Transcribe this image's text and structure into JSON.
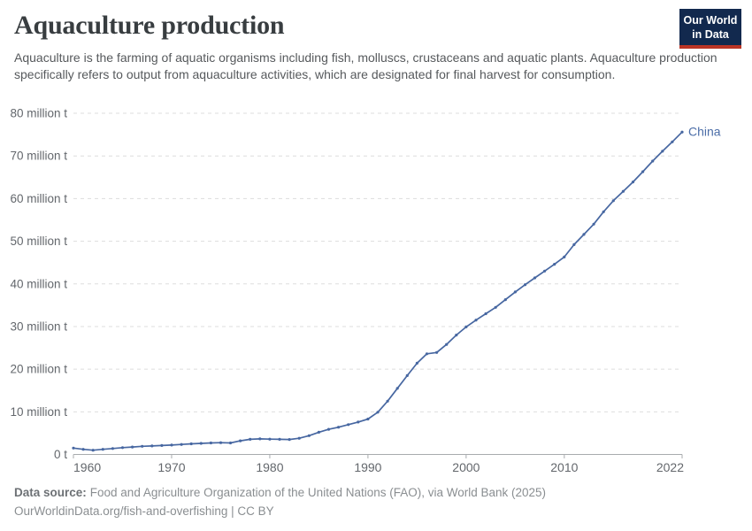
{
  "header": {
    "title": "Aquaculture production",
    "subtitle": "Aquaculture is the farming of aquatic organisms including fish, molluscs, crustaceans and aquatic plants. Aquaculture production specifically refers to output from aquaculture activities, which are designated for final harvest for consumption.",
    "logo": {
      "line1": "Our World",
      "line2": "in Data"
    }
  },
  "footer": {
    "source_label": "Data source:",
    "source_text": "Food and Agriculture Organization of the United Nations (FAO), via World Bank (2025)",
    "note_text": "OurWorldinData.org/fish-and-overfishing | CC BY"
  },
  "colors": {
    "series_blue": "#4767a1",
    "end_label_blue": "#4c6ea8",
    "gridline": "#dddddd",
    "axis": "#a8abae",
    "tick_label": "#63676c",
    "title": "#383d40",
    "subtitle": "#56595c",
    "logo_background": "#12294e",
    "logo_red": "#bb3425"
  },
  "chart_data": {
    "type": "line",
    "title": "Aquaculture production",
    "xlabel": "",
    "ylabel": "",
    "xlim": [
      1960,
      2022
    ],
    "ylim": [
      0,
      80
    ],
    "x_ticks": [
      1960,
      1970,
      1980,
      1990,
      2000,
      2010,
      2022
    ],
    "y_ticks": [
      0,
      10,
      20,
      30,
      40,
      50,
      60,
      70,
      80
    ],
    "y_unit": "million t",
    "y_zero_label": "0 t",
    "grid": "horizontal-dashed",
    "legend_position": "end-of-line-label",
    "series": [
      {
        "name": "China",
        "color": "#4767a1",
        "x": [
          1960,
          1961,
          1962,
          1963,
          1964,
          1965,
          1966,
          1967,
          1968,
          1969,
          1970,
          1971,
          1972,
          1973,
          1974,
          1975,
          1976,
          1977,
          1978,
          1979,
          1980,
          1981,
          1982,
          1983,
          1984,
          1985,
          1986,
          1987,
          1988,
          1989,
          1990,
          1991,
          1992,
          1993,
          1994,
          1995,
          1996,
          1997,
          1998,
          1999,
          2000,
          2001,
          2002,
          2003,
          2004,
          2005,
          2006,
          2007,
          2008,
          2009,
          2010,
          2011,
          2012,
          2013,
          2014,
          2015,
          2016,
          2017,
          2018,
          2019,
          2020,
          2021,
          2022
        ],
        "values": [
          1.5,
          1.2,
          1.0,
          1.2,
          1.4,
          1.6,
          1.75,
          1.9,
          2.0,
          2.1,
          2.2,
          2.35,
          2.5,
          2.6,
          2.7,
          2.75,
          2.7,
          3.2,
          3.55,
          3.65,
          3.6,
          3.55,
          3.5,
          3.8,
          4.4,
          5.2,
          5.9,
          6.4,
          7.0,
          7.6,
          8.3,
          9.9,
          12.5,
          15.5,
          18.5,
          21.4,
          23.6,
          23.9,
          25.8,
          28.0,
          29.9,
          31.5,
          33.0,
          34.5,
          36.3,
          38.1,
          39.8,
          41.4,
          43.0,
          44.6,
          46.3,
          49.2,
          51.6,
          54.0,
          56.9,
          59.5,
          61.7,
          63.9,
          66.3,
          68.8,
          71.1,
          73.3,
          75.6
        ]
      }
    ]
  }
}
